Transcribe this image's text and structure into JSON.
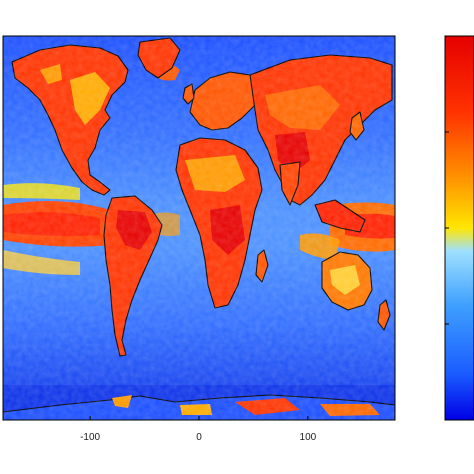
{
  "map": {
    "projection": "equirectangular",
    "lon_range": [
      -180,
      180
    ],
    "lat_range": [
      -90,
      90
    ],
    "x_ticks": [
      -100,
      0,
      100
    ],
    "x_tick_labels": [
      "-100",
      "0",
      "100"
    ],
    "y_ticks_shown": false,
    "coastlines": true,
    "coastline_color": "#000000",
    "field_description_colors": {
      "low": "#0a3cff",
      "mid_low": "#4da6ff",
      "mid": "#fff000",
      "high": "#ff8000",
      "max": "#e60000"
    }
  },
  "colorbar": {
    "orientation": "vertical",
    "colors": [
      "#0000e6",
      "#1a5cff",
      "#3fa0ff",
      "#9fe0ff",
      "#ffe600",
      "#ff9900",
      "#ff3300",
      "#e60000"
    ],
    "tick_labels_visible": false
  }
}
